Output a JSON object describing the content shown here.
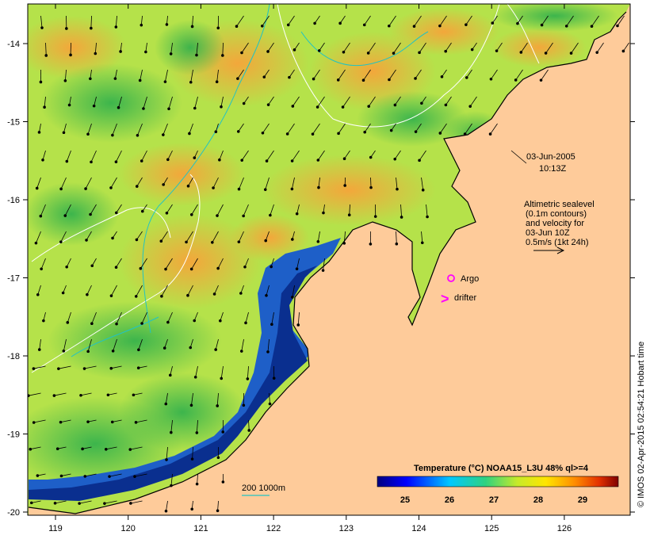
{
  "map": {
    "date": "03-Jun-2005",
    "time": "10:13Z",
    "legend_text": [
      "Altimetric sealevel",
      "(0.1m contours)",
      "and velocity for",
      "03-Jun 10Z",
      "0.5m/s (1kt 24h)"
    ],
    "argo_label": "Argo",
    "drifter_label": "drifter",
    "drifter_marker": ">",
    "depth_label": "200  1000m",
    "credit": "© IMOS 02-Apr-2015 02:54:21 Hobart time",
    "colorbar": {
      "title": "Temperature (°C) NOAA15_L3U 48% ql>=4",
      "ticks": [
        "25",
        "26",
        "27",
        "28",
        "29"
      ]
    },
    "x_ticks": [
      "119",
      "120",
      "121",
      "122",
      "123",
      "124",
      "125",
      "126"
    ],
    "y_ticks": [
      "-14",
      "-15",
      "-16",
      "-17",
      "-18",
      "-19",
      "-20"
    ],
    "colors": {
      "land": "#fecb9a",
      "warm_sea": "#f5b83a",
      "mid_sea": "#b9e84a",
      "cool_sea": "#2eb04c",
      "cold_shelf": "#0a2f8f",
      "contour_sealevel": "#ffffff",
      "contour_depth": "#22c3c3",
      "argo": "#ff00ff",
      "drifter": "#ff00ff"
    }
  }
}
